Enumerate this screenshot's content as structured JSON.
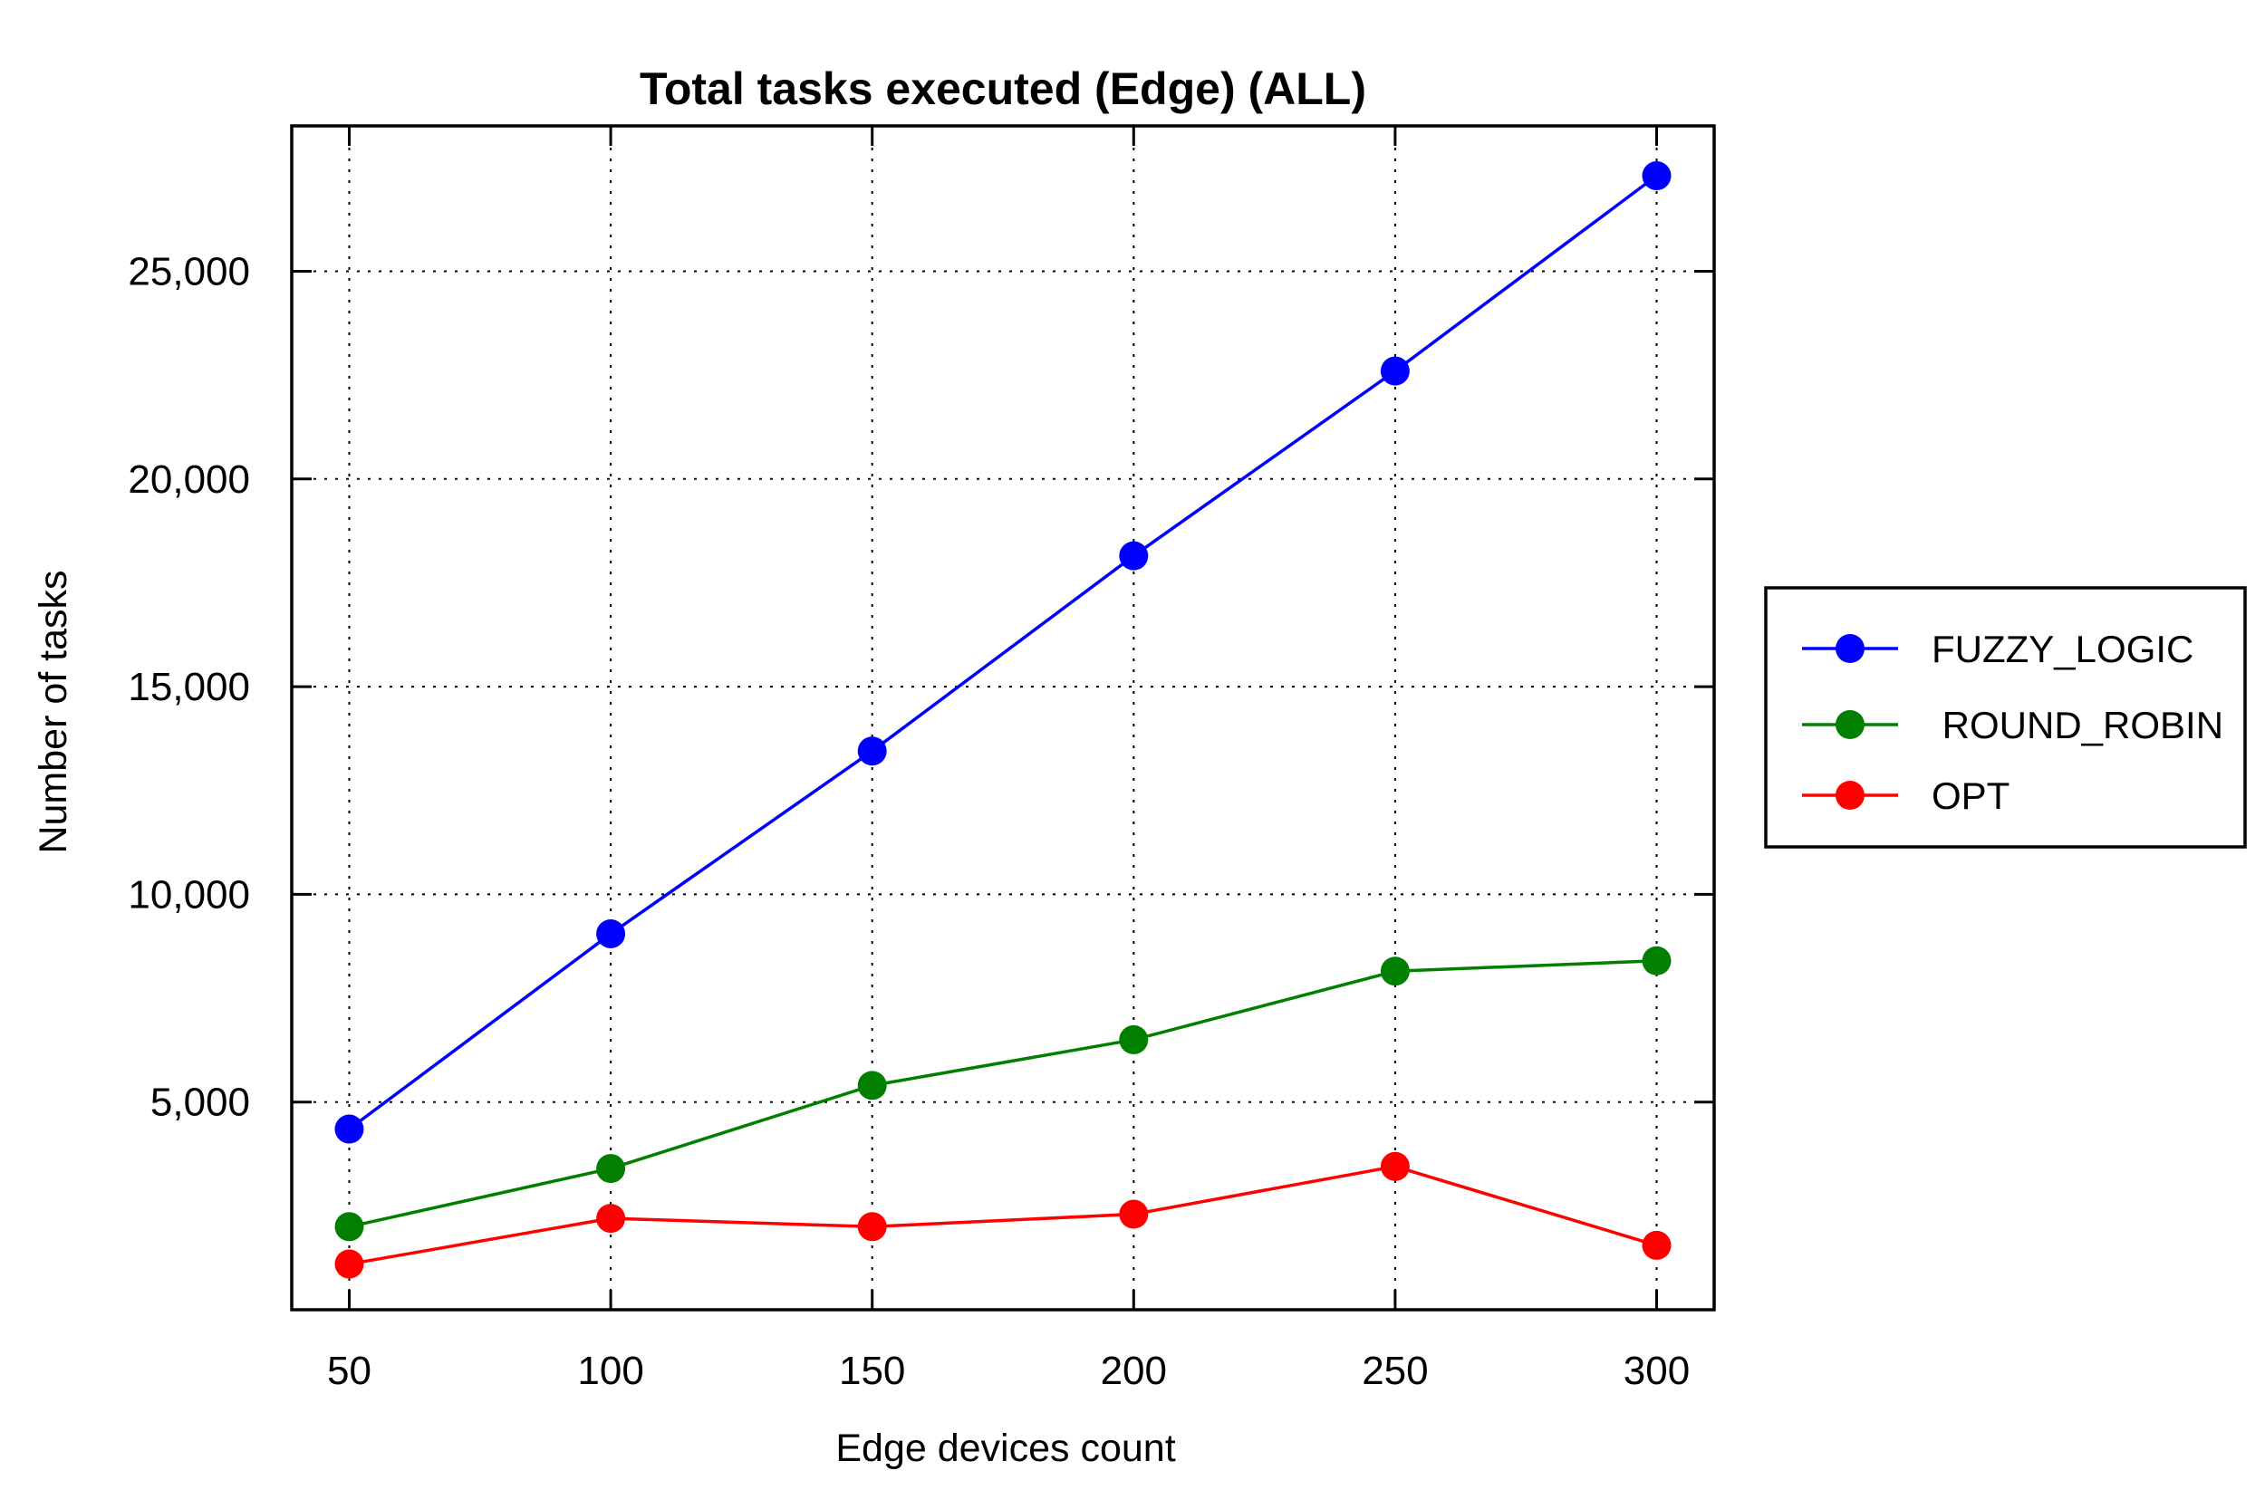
{
  "chart_data": {
    "type": "line",
    "title": "Total tasks executed (Edge) (ALL)",
    "xlabel": "Edge devices count",
    "ylabel": "Number of tasks",
    "x": [
      50,
      100,
      150,
      200,
      250,
      300
    ],
    "x_tick_labels": [
      "50",
      "100",
      "150",
      "200",
      "250",
      "300"
    ],
    "xlim": [
      39,
      311
    ],
    "ylim": [
      0,
      28500
    ],
    "y_ticks": [
      5000,
      10000,
      15000,
      20000,
      25000
    ],
    "y_tick_labels": [
      "5,000",
      "10,000",
      "15,000",
      "20,000",
      "25,000"
    ],
    "grid": true,
    "legend_position": "right",
    "series": [
      {
        "name": "FUZZY_LOGIC",
        "color": "#0000ff",
        "values": [
          4350,
          9050,
          13450,
          18150,
          22600,
          27300
        ]
      },
      {
        "name": " ROUND_ROBIN",
        "color": "#007f00",
        "values": [
          2000,
          3400,
          5400,
          6500,
          8150,
          8400
        ]
      },
      {
        "name": "OPT",
        "color": "#ff0000",
        "values": [
          1100,
          2200,
          2000,
          2300,
          3450,
          1550
        ]
      }
    ]
  }
}
